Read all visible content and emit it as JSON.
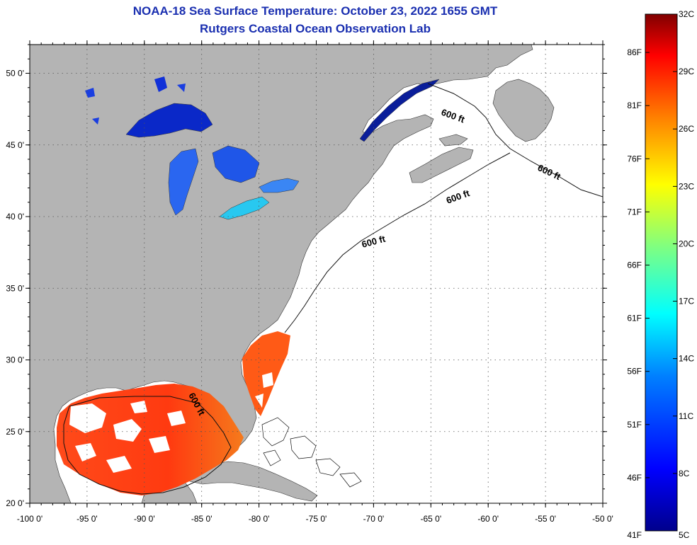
{
  "title": {
    "line1": "NOAA-18 Sea Surface Temperature:  October 23, 2022 1655 GMT",
    "line2": "Rutgers Coastal Ocean Observation Lab"
  },
  "map": {
    "lon_range": [
      -100,
      -50
    ],
    "lat_range": [
      20,
      52
    ],
    "lon_ticks": [
      "-100 0'",
      "-95 0'",
      "-90 0'",
      "-85 0'",
      "-80 0'",
      "-75 0'",
      "-70 0'",
      "-65 0'",
      "-60 0'",
      "-55 0'",
      "-50 0'"
    ],
    "lat_ticks": [
      "50 0'",
      "45 0'",
      "40 0'",
      "35 0'",
      "30 0'",
      "25 0'",
      "20 0'"
    ],
    "land_color": "#b4b4b4",
    "grid": "dotted",
    "contour_label": "600 ft"
  },
  "colorbar": {
    "celsius_ticks": [
      "32C",
      "29C",
      "26C",
      "23C",
      "20C",
      "17C",
      "14C",
      "11C",
      "8C",
      "5C"
    ],
    "fahrenheit_ticks": [
      "86F",
      "81F",
      "76F",
      "71F",
      "66F",
      "61F",
      "56F",
      "51F",
      "46F",
      "41F"
    ],
    "colors": [
      "#00008c",
      "#0000ff",
      "#0080ff",
      "#00ffff",
      "#80ff80",
      "#ffff00",
      "#ff8000",
      "#ff0000",
      "#800000"
    ]
  }
}
